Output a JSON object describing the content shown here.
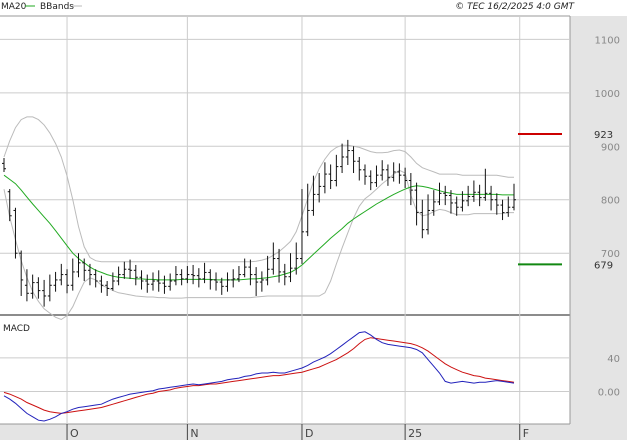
{
  "header": {
    "ma_label": "MA20",
    "bb_label": "BBands",
    "copyright": "© TEC 16/2/2025 4:0 GMT"
  },
  "colors": {
    "ma": "#22aa22",
    "bbands": "#bbbbbb",
    "bars": "#111111",
    "resistance": "#cc0000",
    "support": "#118811",
    "macd": "#2222bb",
    "signal": "#cc1111",
    "grid": "#cccccc",
    "axis_panel": "#e4e4e4"
  },
  "chart_data": [
    {
      "type": "bar",
      "subtype": "ohlc",
      "title": "",
      "ylim": [
        590,
        1140
      ],
      "yticks": [
        700,
        800,
        900,
        1000,
        1100
      ],
      "ytick_labels": [
        "700",
        "800",
        "900",
        "1000",
        "1100"
      ],
      "xticks": [
        {
          "i": 11,
          "label": "O"
        },
        {
          "i": 32,
          "label": "N"
        },
        {
          "i": 52,
          "label": "D"
        },
        {
          "i": 70,
          "label": "25"
        },
        {
          "i": 90,
          "label": "F"
        }
      ],
      "levels": [
        {
          "name": "resistance",
          "value": 923,
          "label": "923"
        },
        {
          "name": "support",
          "value": 679,
          "label": "679"
        }
      ],
      "series": [
        {
          "name": "price",
          "ohlc": [
            [
              868,
              858,
              878,
              852
            ],
            [
              815,
              770,
              820,
              760
            ],
            [
              780,
              700,
              785,
              690
            ],
            [
              700,
              650,
              705,
              620
            ],
            [
              640,
              625,
              670,
              610
            ],
            [
              625,
              645,
              660,
              615
            ],
            [
              645,
              630,
              655,
              615
            ],
            [
              630,
              620,
              650,
              600
            ],
            [
              620,
              640,
              660,
              610
            ],
            [
              640,
              650,
              665,
              628
            ],
            [
              650,
              660,
              680,
              640
            ],
            [
              660,
              640,
              670,
              625
            ],
            [
              640,
              665,
              690,
              630
            ],
            [
              665,
              682,
              700,
              655
            ],
            [
              682,
              668,
              690,
              648
            ],
            [
              668,
              660,
              680,
              640
            ],
            [
              660,
              648,
              670,
              636
            ],
            [
              648,
              640,
              658,
              626
            ],
            [
              640,
              634,
              648,
              620
            ],
            [
              634,
              648,
              664,
              630
            ],
            [
              648,
              660,
              675,
              640
            ],
            [
              660,
              670,
              684,
              652
            ],
            [
              670,
              668,
              688,
              652
            ],
            [
              668,
              655,
              678,
              640
            ],
            [
              655,
              648,
              668,
              632
            ],
            [
              648,
              642,
              660,
              626
            ],
            [
              642,
              648,
              664,
              630
            ],
            [
              648,
              644,
              668,
              628
            ],
            [
              644,
              638,
              658,
              624
            ],
            [
              638,
              648,
              662,
              630
            ],
            [
              648,
              660,
              676,
              640
            ],
            [
              660,
              652,
              670,
              640
            ],
            [
              652,
              660,
              676,
              644
            ],
            [
              660,
              658,
              678,
              642
            ],
            [
              658,
              652,
              672,
              636
            ],
            [
              652,
              664,
              682,
              644
            ],
            [
              664,
              650,
              670,
              632
            ],
            [
              650,
              646,
              664,
              630
            ],
            [
              646,
              638,
              654,
              622
            ],
            [
              638,
              650,
              664,
              628
            ],
            [
              650,
              652,
              670,
              636
            ],
            [
              652,
              660,
              676,
              646
            ],
            [
              660,
              674,
              690,
              655
            ],
            [
              674,
              660,
              688,
              640
            ],
            [
              660,
              646,
              674,
              620
            ],
            [
              646,
              650,
              666,
              628
            ],
            [
              650,
              670,
              695,
              640
            ],
            [
              670,
              690,
              720,
              660
            ],
            [
              690,
              665,
              708,
              645
            ],
            [
              665,
              656,
              680,
              640
            ],
            [
              656,
              672,
              700,
              646
            ],
            [
              672,
              690,
              720,
              660
            ],
            [
              690,
              740,
              820,
              680
            ],
            [
              740,
              780,
              830,
              732
            ],
            [
              780,
              810,
              845,
              770
            ],
            [
              810,
              825,
              850,
              795
            ],
            [
              825,
              848,
              870,
              812
            ],
            [
              848,
              836,
              866,
              820
            ],
            [
              836,
              862,
              884,
              825
            ],
            [
              862,
              880,
              905,
              850
            ],
            [
              880,
              892,
              912,
              865
            ],
            [
              892,
              872,
              900,
              850
            ],
            [
              872,
              856,
              880,
              836
            ],
            [
              856,
              844,
              866,
              828
            ],
            [
              844,
              832,
              855,
              818
            ],
            [
              832,
              846,
              864,
              824
            ],
            [
              846,
              856,
              874,
              836
            ],
            [
              856,
              842,
              866,
              826
            ],
            [
              842,
              852,
              870,
              834
            ],
            [
              852,
              846,
              868,
              830
            ],
            [
              846,
              836,
              860,
              822
            ],
            [
              836,
              818,
              850,
              790
            ],
            [
              818,
              776,
              832,
              752
            ],
            [
              776,
              744,
              800,
              728
            ],
            [
              744,
              780,
              810,
              735
            ],
            [
              780,
              796,
              818,
              770
            ],
            [
              796,
              812,
              832,
              790
            ],
            [
              812,
              808,
              826,
              790
            ],
            [
              808,
              794,
              818,
              774
            ],
            [
              794,
              786,
              806,
              770
            ],
            [
              786,
              798,
              816,
              778
            ],
            [
              798,
              806,
              826,
              788
            ],
            [
              806,
              814,
              836,
              796
            ],
            [
              814,
              804,
              828,
              788
            ],
            [
              804,
              812,
              858,
              798
            ],
            [
              812,
              800,
              826,
              780
            ],
            [
              800,
              790,
              812,
              772
            ],
            [
              790,
              776,
              800,
              762
            ],
            [
              776,
              786,
              806,
              768
            ],
            [
              786,
              800,
              830,
              780
            ]
          ]
        },
        {
          "name": "MA20",
          "values": [
            846,
            838,
            830,
            818,
            805,
            792,
            780,
            768,
            756,
            742,
            728,
            714,
            700,
            690,
            682,
            674,
            668,
            664,
            660,
            657,
            655,
            654,
            653,
            652,
            652,
            651,
            651,
            650,
            650,
            650,
            650,
            651,
            651,
            651,
            651,
            651,
            651,
            650,
            650,
            650,
            650,
            650,
            651,
            652,
            652,
            653,
            654,
            656,
            658,
            661,
            664,
            670,
            678,
            688,
            698,
            708,
            718,
            728,
            737,
            746,
            756,
            764,
            771,
            778,
            785,
            792,
            798,
            804,
            810,
            815,
            820,
            824,
            826,
            825,
            823,
            820,
            817,
            814,
            812,
            810,
            810,
            810,
            810,
            810,
            810,
            810,
            810,
            809,
            809,
            809
          ]
        },
        {
          "name": "BBands upper",
          "values": [
            880,
            910,
            935,
            950,
            955,
            955,
            950,
            940,
            925,
            905,
            880,
            845,
            800,
            750,
            712,
            692,
            686,
            684,
            684,
            684,
            684,
            684,
            684,
            684,
            684,
            684,
            684,
            684,
            684,
            684,
            684,
            684,
            684,
            684,
            684,
            684,
            684,
            684,
            684,
            684,
            684,
            684,
            684,
            684,
            685,
            687,
            690,
            696,
            703,
            712,
            722,
            740,
            770,
            802,
            834,
            858,
            876,
            890,
            898,
            902,
            902,
            900,
            898,
            894,
            890,
            888,
            888,
            889,
            892,
            893,
            890,
            880,
            868,
            860,
            856,
            852,
            848,
            848,
            848,
            848,
            846,
            846,
            846,
            846,
            846,
            846,
            846,
            844,
            842,
            842
          ]
        },
        {
          "name": "BBands lower",
          "values": [
            820,
            768,
            725,
            686,
            655,
            628,
            610,
            596,
            588,
            580,
            576,
            583,
            600,
            624,
            646,
            654,
            650,
            640,
            636,
            630,
            626,
            624,
            622,
            620,
            619,
            618,
            618,
            617,
            617,
            616,
            616,
            616,
            617,
            617,
            617,
            617,
            617,
            617,
            617,
            617,
            617,
            617,
            617,
            617,
            618,
            619,
            620,
            620,
            620,
            620,
            620,
            620,
            620,
            620,
            620,
            620,
            626,
            648,
            680,
            710,
            738,
            766,
            788,
            802,
            810,
            820,
            830,
            838,
            848,
            855,
            850,
            808,
            780,
            770,
            772,
            778,
            782,
            780,
            776,
            772,
            772,
            772,
            774,
            774,
            774,
            774,
            774,
            774,
            776,
            776
          ]
        }
      ]
    },
    {
      "type": "line",
      "title": "MACD",
      "ylim": [
        -35,
        85
      ],
      "yticks": [
        0,
        40
      ],
      "ytick_labels": [
        "0.00",
        "40"
      ],
      "series": [
        {
          "name": "macd",
          "values": [
            -5,
            -9,
            -14,
            -20,
            -26,
            -30,
            -34,
            -35,
            -33,
            -30,
            -26,
            -24,
            -21,
            -19,
            -18,
            -17,
            -16,
            -15,
            -12,
            -9,
            -7,
            -5,
            -3,
            -2,
            -1,
            0,
            1,
            3,
            4,
            5,
            6,
            7,
            8,
            9,
            8,
            9,
            10,
            11,
            12,
            14,
            15,
            16,
            18,
            19,
            21,
            22,
            22,
            23,
            22,
            22,
            24,
            26,
            28,
            31,
            35,
            38,
            41,
            45,
            50,
            55,
            60,
            65,
            70,
            71,
            67,
            62,
            58,
            56,
            55,
            54,
            53,
            52,
            50,
            46,
            38,
            30,
            22,
            12,
            10,
            11,
            12,
            11,
            10,
            11,
            11,
            12,
            13,
            12,
            11,
            10
          ]
        },
        {
          "name": "signal",
          "values": [
            -1,
            -3,
            -6,
            -9,
            -13,
            -16,
            -19,
            -22,
            -24,
            -25,
            -26,
            -25,
            -24,
            -23,
            -22,
            -21,
            -20,
            -19,
            -17,
            -15,
            -13,
            -11,
            -9,
            -7,
            -5,
            -3,
            -2,
            0,
            1,
            2,
            4,
            5,
            6,
            7,
            7,
            8,
            9,
            9,
            10,
            11,
            12,
            13,
            14,
            15,
            16,
            17,
            18,
            19,
            19,
            20,
            21,
            22,
            23,
            25,
            27,
            29,
            32,
            35,
            38,
            42,
            46,
            51,
            57,
            62,
            64,
            63,
            62,
            61,
            60,
            59,
            58,
            57,
            55,
            52,
            48,
            43,
            38,
            33,
            29,
            26,
            23,
            21,
            19,
            18,
            16,
            15,
            14,
            13,
            12,
            11
          ]
        }
      ]
    }
  ]
}
